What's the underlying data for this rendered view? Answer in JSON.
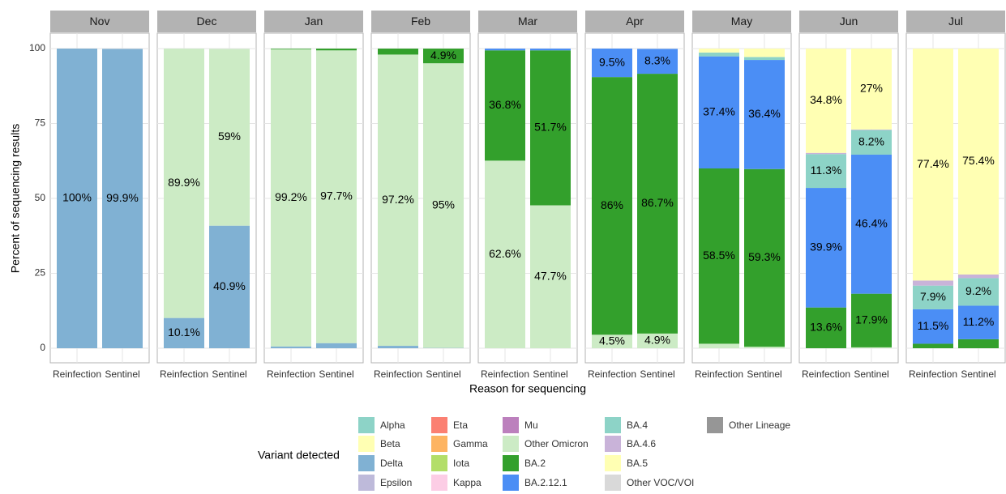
{
  "chart_data": {
    "type": "faceted-stacked-bar",
    "x_label": "Reason for sequencing",
    "y_label": "Percent of sequencing results",
    "ylim": [
      0,
      100
    ],
    "yticks": [
      0,
      25,
      50,
      75,
      100
    ],
    "grid": true,
    "categories": [
      "Reinfection",
      "Sentinel"
    ],
    "legend_title": "Variant detected",
    "legend": [
      {
        "name": "Alpha",
        "color": "#8dd3c7"
      },
      {
        "name": "Beta",
        "color": "#ffffb3"
      },
      {
        "name": "Delta",
        "color": "#80b1d3"
      },
      {
        "name": "Epsilon",
        "color": "#bebada"
      },
      {
        "name": "Eta",
        "color": "#fb8072"
      },
      {
        "name": "Gamma",
        "color": "#fdb462"
      },
      {
        "name": "Iota",
        "color": "#b3de69"
      },
      {
        "name": "Kappa",
        "color": "#fccde5"
      },
      {
        "name": "Mu",
        "color": "#bc80bd"
      },
      {
        "name": "Other Omicron",
        "color": "#ccebc5"
      },
      {
        "name": "BA.2",
        "color": "#33a02c"
      },
      {
        "name": "BA.2.12.1",
        "color": "#4b8ef5"
      },
      {
        "name": "BA.4",
        "color": "#8dd3c7"
      },
      {
        "name": "BA.4.6",
        "color": "#c9b3d9"
      },
      {
        "name": "BA.5",
        "color": "#ffffb3"
      },
      {
        "name": "Other VOC/VOI",
        "color": "#d9d9d9"
      },
      {
        "name": "Other Lineage",
        "color": "#969696"
      }
    ],
    "facets": [
      {
        "title": "Nov",
        "series": [
          {
            "name": "Delta",
            "values": [
              100,
              99.9
            ],
            "value_labels": [
              "100%",
              "99.9%"
            ]
          }
        ]
      },
      {
        "title": "Dec",
        "series": [
          {
            "name": "Delta",
            "values": [
              10.1,
              40.9
            ],
            "value_labels": [
              "10.1%",
              "40.9%"
            ]
          },
          {
            "name": "Other Omicron",
            "values": [
              89.9,
              59
            ],
            "value_labels": [
              "89.9%",
              "59%"
            ]
          }
        ]
      },
      {
        "title": "Jan",
        "series": [
          {
            "name": "Delta",
            "values": [
              0.6,
              1.7
            ],
            "value_labels": [
              null,
              null
            ]
          },
          {
            "name": "Other Omicron",
            "values": [
              99.2,
              97.7
            ],
            "value_labels": [
              "99.2%",
              "97.7%"
            ]
          },
          {
            "name": "BA.2",
            "values": [
              0.2,
              0.6
            ],
            "value_labels": [
              null,
              null
            ]
          }
        ]
      },
      {
        "title": "Feb",
        "series": [
          {
            "name": "Delta",
            "values": [
              0.8,
              0.1
            ],
            "value_labels": [
              null,
              null
            ]
          },
          {
            "name": "Other Omicron",
            "values": [
              97.2,
              95
            ],
            "value_labels": [
              "97.2%",
              "95%"
            ]
          },
          {
            "name": "BA.2",
            "values": [
              2.0,
              4.9
            ],
            "value_labels": [
              null,
              "4.9%"
            ]
          }
        ]
      },
      {
        "title": "Mar",
        "series": [
          {
            "name": "Other Omicron",
            "values": [
              62.6,
              47.7
            ],
            "value_labels": [
              "62.6%",
              "47.7%"
            ]
          },
          {
            "name": "BA.2",
            "values": [
              36.8,
              51.7
            ],
            "value_labels": [
              "36.8%",
              "51.7%"
            ]
          },
          {
            "name": "BA.2.12.1",
            "values": [
              0.6,
              0.6
            ],
            "value_labels": [
              null,
              null
            ]
          }
        ]
      },
      {
        "title": "Apr",
        "series": [
          {
            "name": "Other Omicron",
            "values": [
              4.5,
              4.9
            ],
            "value_labels": [
              "4.5%",
              "4.9%"
            ]
          },
          {
            "name": "BA.2",
            "values": [
              86,
              86.7
            ],
            "value_labels": [
              "86%",
              "86.7%"
            ]
          },
          {
            "name": "BA.2.12.1",
            "values": [
              9.5,
              8.3
            ],
            "value_labels": [
              "9.5%",
              "8.3%"
            ]
          }
        ]
      },
      {
        "title": "May",
        "series": [
          {
            "name": "Other Omicron",
            "values": [
              1.5,
              0.5
            ],
            "value_labels": [
              null,
              null
            ]
          },
          {
            "name": "BA.2",
            "values": [
              58.5,
              59.3
            ],
            "value_labels": [
              "58.5%",
              "59.3%"
            ]
          },
          {
            "name": "BA.2.12.1",
            "values": [
              37.4,
              36.4
            ],
            "value_labels": [
              "37.4%",
              "36.4%"
            ]
          },
          {
            "name": "BA.4",
            "values": [
              1.3,
              1.0
            ],
            "value_labels": [
              null,
              null
            ]
          },
          {
            "name": "BA.5",
            "values": [
              1.3,
              2.8
            ],
            "value_labels": [
              null,
              null
            ]
          }
        ]
      },
      {
        "title": "Jun",
        "series": [
          {
            "name": "Other Omicron",
            "values": [
              0,
              0.3
            ],
            "value_labels": [
              null,
              null
            ]
          },
          {
            "name": "BA.2",
            "values": [
              13.6,
              17.9
            ],
            "value_labels": [
              "13.6%",
              "17.9%"
            ]
          },
          {
            "name": "BA.2.12.1",
            "values": [
              39.9,
              46.4
            ],
            "value_labels": [
              "39.9%",
              "46.4%"
            ]
          },
          {
            "name": "BA.4",
            "values": [
              11.3,
              8.2
            ],
            "value_labels": [
              "11.3%",
              "8.2%"
            ]
          },
          {
            "name": "BA.4.6",
            "values": [
              0.4,
              0.2
            ],
            "value_labels": [
              null,
              null
            ]
          },
          {
            "name": "BA.5",
            "values": [
              34.8,
              27
            ],
            "value_labels": [
              "34.8%",
              "27%"
            ]
          }
        ]
      },
      {
        "title": "Jul",
        "series": [
          {
            "name": "BA.2",
            "values": [
              1.5,
              3.0
            ],
            "value_labels": [
              null,
              null
            ]
          },
          {
            "name": "BA.2.12.1",
            "values": [
              11.5,
              11.2
            ],
            "value_labels": [
              "11.5%",
              "11.2%"
            ]
          },
          {
            "name": "BA.4",
            "values": [
              7.9,
              9.2
            ],
            "value_labels": [
              "7.9%",
              "9.2%"
            ]
          },
          {
            "name": "BA.4.6",
            "values": [
              1.7,
              1.2
            ],
            "value_labels": [
              null,
              null
            ]
          },
          {
            "name": "BA.5",
            "values": [
              77.4,
              75.4
            ],
            "value_labels": [
              "77.4%",
              "75.4%"
            ]
          }
        ]
      }
    ]
  }
}
